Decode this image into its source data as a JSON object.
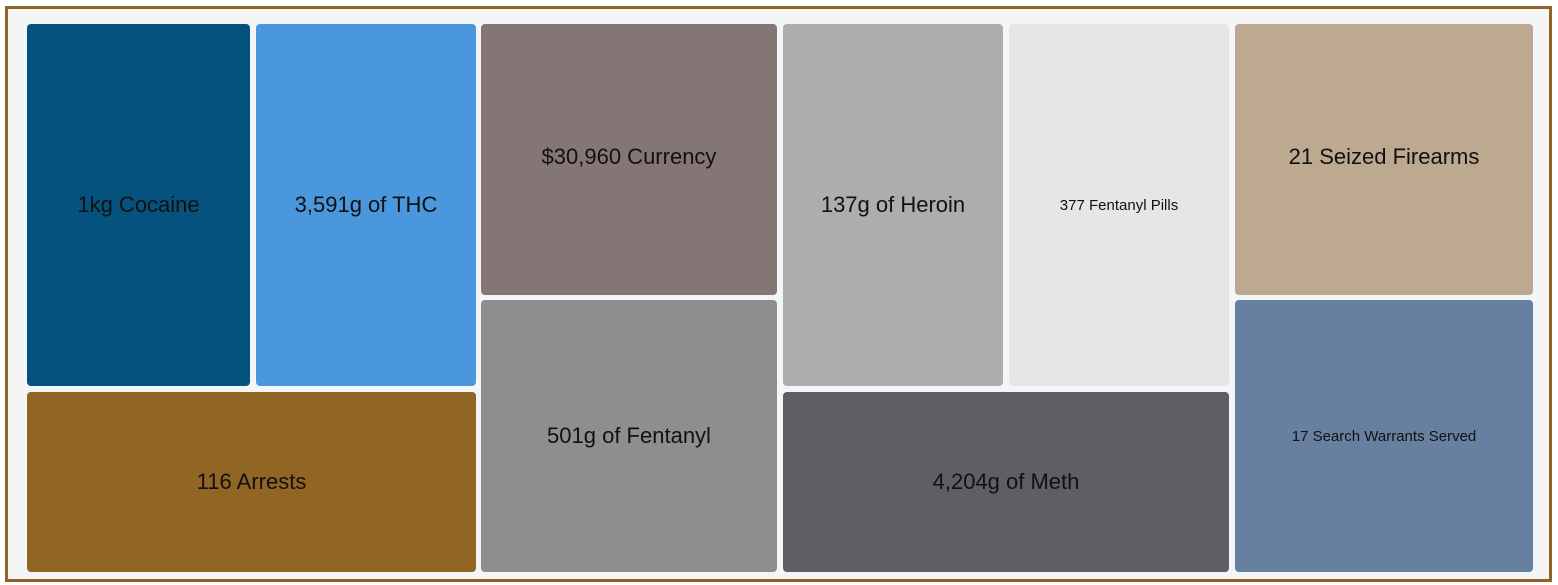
{
  "tiles": [
    {
      "label": "1kg Cocaine"
    },
    {
      "label": "3,591g of THC"
    },
    {
      "label": "116 Arrests"
    },
    {
      "label": "$30,960 Currency"
    },
    {
      "label": "501g of Fentanyl"
    },
    {
      "label": "137g of Heroin"
    },
    {
      "label": "377 Fentanyl Pills"
    },
    {
      "label": "4,204g of Meth"
    },
    {
      "label": "21 Seized Firearms"
    },
    {
      "label": "17 Search Warrants Served"
    }
  ]
}
